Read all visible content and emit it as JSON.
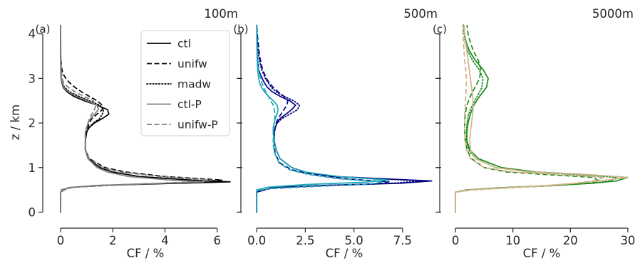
{
  "chart_data": [
    {
      "type": "line",
      "panel_label": "(a)",
      "title": "100m",
      "xlabel": "CF / %",
      "ylabel": "z / km",
      "xlim": [
        -0.3,
        6.8
      ],
      "ylim": [
        -0.2,
        4.25
      ],
      "xticks": [
        0,
        2,
        4,
        6
      ],
      "xtick_labels": [
        "0",
        "2",
        "4",
        "6"
      ],
      "yticks": [
        0,
        1,
        2,
        3,
        4
      ],
      "ytick_labels": [
        "0",
        "1",
        "2",
        "3",
        "4"
      ],
      "grid": false,
      "legend": {
        "placement": "top-right",
        "entries": [
          {
            "label": "ctl",
            "color": "#000000",
            "dash": "solid"
          },
          {
            "label": "unifw",
            "color": "#000000",
            "dash": "dashed"
          },
          {
            "label": "madw",
            "color": "#000000",
            "dash": "dotted"
          },
          {
            "label": "ctl-P",
            "color": "#808080",
            "dash": "solid"
          },
          {
            "label": "unifw-P",
            "color": "#808080",
            "dash": "dashed"
          }
        ]
      },
      "series": [
        {
          "name": "ctl",
          "color": "#000000",
          "dash": "solid",
          "z": [
            0,
            0.45,
            0.55,
            0.6,
            0.64,
            0.68,
            0.72,
            0.8,
            0.9,
            1.0,
            1.2,
            1.4,
            1.6,
            1.8,
            1.9,
            2.0,
            2.1,
            2.2,
            2.3,
            2.4,
            2.5,
            2.6,
            2.7,
            2.8,
            2.9,
            3.0,
            3.2,
            3.6,
            4.2
          ],
          "cf": [
            0,
            0,
            0.3,
            1.5,
            4.0,
            6.5,
            5.0,
            3.0,
            2.0,
            1.5,
            1.05,
            0.95,
            0.95,
            1.0,
            1.1,
            1.3,
            1.6,
            1.85,
            1.8,
            1.4,
            0.9,
            0.5,
            0.25,
            0.1,
            0.05,
            0.02,
            0.01,
            0,
            0
          ]
        },
        {
          "name": "unifw",
          "color": "#000000",
          "dash": "dashed",
          "z": [
            0,
            0.5,
            0.56,
            0.62,
            0.67,
            0.72,
            0.8,
            0.9,
            1.0,
            1.2,
            1.4,
            1.6,
            1.8,
            1.9,
            2.0,
            2.1,
            2.2,
            2.3,
            2.4,
            2.5,
            2.6,
            2.7,
            2.8,
            2.9,
            3.0,
            3.1,
            3.2,
            3.5,
            4.2
          ],
          "cf": [
            0,
            0,
            0.5,
            2.5,
            5.0,
            6.2,
            4.0,
            2.5,
            1.7,
            1.1,
            0.95,
            0.95,
            1.0,
            1.05,
            1.1,
            1.2,
            1.4,
            1.6,
            1.6,
            1.4,
            1.1,
            0.8,
            0.55,
            0.35,
            0.2,
            0.1,
            0.05,
            0,
            0
          ]
        },
        {
          "name": "madw",
          "color": "#000000",
          "dash": "dotted",
          "z": [
            0,
            0.45,
            0.55,
            0.6,
            0.64,
            0.68,
            0.72,
            0.8,
            0.9,
            1.0,
            1.2,
            1.4,
            1.6,
            1.8,
            1.9,
            2.0,
            2.1,
            2.2,
            2.3,
            2.4,
            2.5,
            2.6,
            2.7,
            2.8,
            2.9,
            3.0,
            3.2,
            3.6,
            4.2
          ],
          "cf": [
            0,
            0,
            0.3,
            1.4,
            3.8,
            6.4,
            5.0,
            3.0,
            2.0,
            1.5,
            1.1,
            0.95,
            0.95,
            1.0,
            1.1,
            1.25,
            1.5,
            1.6,
            1.65,
            1.5,
            1.1,
            0.7,
            0.35,
            0.15,
            0.07,
            0.03,
            0.01,
            0,
            0
          ]
        },
        {
          "name": "ctl-P",
          "color": "#808080",
          "dash": "solid",
          "z": [
            0,
            0.45,
            0.55,
            0.6,
            0.64,
            0.68,
            0.72,
            0.8,
            0.9,
            1.0,
            1.2,
            1.4,
            1.6,
            1.8,
            1.9,
            2.0,
            2.1,
            2.2,
            2.3,
            2.4,
            2.5,
            2.6,
            2.7,
            2.8,
            2.9,
            3.0,
            3.2,
            3.6,
            4.2
          ],
          "cf": [
            0,
            0,
            0.3,
            1.4,
            3.5,
            5.5,
            4.2,
            2.6,
            1.8,
            1.4,
            1.05,
            0.95,
            0.95,
            0.95,
            1.0,
            1.05,
            1.15,
            1.3,
            1.45,
            1.4,
            1.0,
            0.6,
            0.3,
            0.12,
            0.06,
            0.03,
            0.01,
            0,
            0
          ]
        },
        {
          "name": "unifw-P",
          "color": "#808080",
          "dash": "dashed",
          "z": [
            0,
            0.5,
            0.56,
            0.62,
            0.67,
            0.72,
            0.8,
            0.9,
            1.0,
            1.2,
            1.4,
            1.6,
            1.8,
            1.9,
            2.0,
            2.1,
            2.2,
            2.3,
            2.4,
            2.5,
            2.6,
            2.7,
            2.8,
            2.9,
            3.0,
            3.2,
            3.6,
            4.2
          ],
          "cf": [
            0,
            0,
            0.5,
            2.5,
            4.8,
            5.8,
            3.8,
            2.3,
            1.6,
            1.1,
            0.95,
            0.95,
            0.95,
            1.0,
            1.05,
            1.1,
            1.2,
            1.3,
            1.35,
            1.25,
            0.9,
            0.55,
            0.3,
            0.12,
            0.06,
            0.03,
            0.01,
            0,
            0
          ]
        }
      ]
    },
    {
      "type": "line",
      "panel_label": "(b)",
      "title": "500m",
      "xlabel": "CF / %",
      "ylabel": "",
      "xlim": [
        -0.3,
        9.3
      ],
      "ylim": [
        -0.2,
        4.25
      ],
      "xticks": [
        0,
        2.5,
        5,
        7.5
      ],
      "xtick_labels": [
        "0.0",
        "2.5",
        "5.0",
        "7.5"
      ],
      "yticks": [
        0,
        1,
        2,
        3,
        4
      ],
      "ytick_labels": [
        "",
        "",
        "",
        "",
        ""
      ],
      "grid": false,
      "series": [
        {
          "name": "ctl",
          "color": "#00007f",
          "dash": "solid",
          "z": [
            0,
            0.45,
            0.55,
            0.6,
            0.65,
            0.7,
            0.75,
            0.8,
            0.9,
            1.0,
            1.2,
            1.4,
            1.6,
            1.8,
            1.9,
            2.0,
            2.1,
            2.2,
            2.3,
            2.4,
            2.5,
            2.6,
            2.7,
            2.8,
            2.9,
            3.0,
            3.1,
            3.2,
            3.5,
            4.2
          ],
          "cf": [
            0,
            0,
            0.8,
            3.5,
            7.5,
            9.0,
            6.5,
            4.0,
            2.5,
            1.8,
            1.2,
            1.0,
            0.9,
            0.9,
            0.95,
            1.05,
            1.2,
            1.5,
            1.8,
            2.0,
            1.7,
            1.2,
            0.8,
            0.55,
            0.4,
            0.28,
            0.18,
            0.1,
            0.03,
            0
          ]
        },
        {
          "name": "unifw",
          "color": "#00007f",
          "dash": "dashed",
          "z": [
            0,
            0.48,
            0.53,
            0.58,
            0.63,
            0.68,
            0.75,
            0.85,
            0.95,
            1.1,
            1.3,
            1.5,
            1.7,
            1.9,
            2.0,
            2.1,
            2.2,
            2.3,
            2.4,
            2.5,
            2.6,
            2.7,
            2.8,
            2.9,
            3.0,
            3.2,
            3.5,
            4.0,
            4.2
          ],
          "cf": [
            0,
            0,
            0.8,
            3.0,
            6.0,
            6.8,
            4.5,
            2.8,
            1.8,
            1.2,
            0.95,
            0.9,
            0.9,
            0.95,
            1.0,
            1.1,
            1.25,
            1.4,
            1.55,
            1.6,
            1.4,
            1.1,
            0.85,
            0.65,
            0.5,
            0.3,
            0.15,
            0.03,
            0
          ]
        },
        {
          "name": "madw",
          "color": "#00007f",
          "dash": "dotted",
          "z": [
            0,
            0.45,
            0.55,
            0.6,
            0.65,
            0.7,
            0.75,
            0.8,
            0.9,
            1.0,
            1.2,
            1.4,
            1.6,
            1.8,
            1.9,
            2.0,
            2.1,
            2.2,
            2.3,
            2.4,
            2.5,
            2.6,
            2.7,
            2.8,
            2.9,
            3.0,
            3.2,
            3.5,
            3.8,
            4.2
          ],
          "cf": [
            0,
            0,
            0.8,
            3.4,
            7.0,
            8.5,
            6.2,
            3.9,
            2.5,
            1.8,
            1.2,
            1.0,
            0.9,
            0.9,
            0.95,
            1.05,
            1.3,
            1.7,
            2.1,
            2.2,
            1.9,
            1.4,
            1.0,
            0.75,
            0.6,
            0.45,
            0.25,
            0.1,
            0.04,
            0
          ]
        },
        {
          "name": "ctl-P",
          "color": "#17a9b5",
          "dash": "solid",
          "z": [
            0,
            0.5,
            0.56,
            0.62,
            0.67,
            0.72,
            0.8,
            0.9,
            1.0,
            1.2,
            1.4,
            1.6,
            1.8,
            1.9,
            2.0,
            2.1,
            2.2,
            2.3,
            2.4,
            2.5,
            2.6,
            2.7,
            2.8,
            2.9,
            3.0,
            3.2,
            3.5,
            4.0,
            4.2
          ],
          "cf": [
            0,
            0,
            0.6,
            2.5,
            5.5,
            6.8,
            4.2,
            2.5,
            1.8,
            1.2,
            1.0,
            0.9,
            0.85,
            0.85,
            0.9,
            0.95,
            1.05,
            1.1,
            1.05,
            0.85,
            0.6,
            0.4,
            0.25,
            0.15,
            0.1,
            0.05,
            0.02,
            0,
            0
          ]
        },
        {
          "name": "unifw-P",
          "color": "#17a9b5",
          "dash": "dashed",
          "z": [
            0,
            0.48,
            0.53,
            0.58,
            0.63,
            0.68,
            0.75,
            0.85,
            0.95,
            1.1,
            1.3,
            1.5,
            1.7,
            1.9,
            2.0,
            2.2,
            2.4,
            2.6,
            2.8,
            3.0,
            3.2,
            3.5,
            4.0,
            4.2
          ],
          "cf": [
            0,
            0,
            0.7,
            2.8,
            5.8,
            6.5,
            4.2,
            2.6,
            1.7,
            1.15,
            0.95,
            0.85,
            0.85,
            0.85,
            0.9,
            0.95,
            0.85,
            0.6,
            0.35,
            0.2,
            0.1,
            0.04,
            0.01,
            0
          ]
        }
      ]
    },
    {
      "type": "line",
      "panel_label": "(c)",
      "title": "5000m",
      "xlabel": "CF / %",
      "ylabel": "",
      "xlim": [
        -1,
        31
      ],
      "ylim": [
        -0.2,
        4.25
      ],
      "xticks": [
        0,
        10,
        20,
        30
      ],
      "xtick_labels": [
        "0",
        "10",
        "20",
        "30"
      ],
      "yticks": [
        0,
        1,
        2,
        3,
        4
      ],
      "ytick_labels": [
        "",
        "",
        "",
        "",
        ""
      ],
      "grid": false,
      "series": [
        {
          "name": "ctl",
          "color": "#1a8a1a",
          "dash": "solid",
          "z": [
            0,
            0.45,
            0.5,
            0.55,
            0.6,
            0.65,
            0.7,
            0.78,
            0.85,
            0.9,
            1.0,
            1.2,
            1.4,
            1.6,
            1.8,
            2.0,
            2.2,
            2.4,
            2.6,
            2.8,
            3.0,
            3.2,
            3.4,
            3.6,
            3.8,
            4.0,
            4.2
          ],
          "cf": [
            0,
            0,
            2.0,
            8.0,
            17.0,
            24.0,
            28.0,
            30.0,
            22.0,
            14.0,
            8.0,
            4.0,
            2.5,
            2.0,
            2.0,
            2.2,
            2.6,
            3.2,
            4.2,
            5.4,
            5.7,
            4.8,
            3.5,
            2.5,
            1.9,
            1.6,
            1.5
          ]
        },
        {
          "name": "unifw",
          "color": "#1a8a1a",
          "dash": "dashed",
          "z": [
            0,
            0.45,
            0.5,
            0.55,
            0.6,
            0.65,
            0.7,
            0.78,
            0.85,
            0.9,
            1.0,
            1.2,
            1.4,
            1.6,
            1.8,
            2.0,
            2.2,
            2.4,
            2.6,
            2.8,
            3.0,
            3.2,
            3.4,
            3.6,
            3.8,
            4.0,
            4.2
          ],
          "cf": [
            0,
            0,
            3.0,
            10.0,
            18.0,
            23.0,
            25.0,
            24.0,
            15.0,
            9.0,
            5.0,
            2.8,
            2.0,
            1.7,
            1.6,
            1.6,
            1.7,
            2.0,
            2.6,
            3.4,
            4.2,
            4.4,
            4.0,
            3.2,
            2.6,
            2.2,
            2.0
          ]
        },
        {
          "name": "madw",
          "color": "#1a8a1a",
          "dash": "dotted",
          "z": [
            0,
            0.45,
            0.5,
            0.55,
            0.6,
            0.65,
            0.7,
            0.78,
            0.85,
            0.9,
            1.0,
            1.2,
            1.4,
            1.6,
            1.8,
            2.0,
            2.2,
            2.4,
            2.6,
            2.8,
            3.0,
            3.2,
            3.4,
            3.6,
            3.8,
            4.0,
            4.2
          ],
          "cf": [
            0,
            0,
            2.2,
            8.5,
            17.0,
            24.0,
            27.0,
            28.0,
            20.0,
            13.0,
            7.0,
            3.5,
            2.3,
            1.9,
            1.9,
            2.0,
            2.3,
            2.9,
            3.8,
            4.6,
            4.8,
            4.1,
            3.0,
            2.2,
            1.7,
            1.5,
            1.4
          ]
        },
        {
          "name": "ctl-P",
          "color": "#d2b48c",
          "dash": "solid",
          "z": [
            0,
            0.45,
            0.5,
            0.55,
            0.6,
            0.65,
            0.7,
            0.78,
            0.85,
            0.9,
            1.0,
            1.2,
            1.4,
            1.6,
            1.8,
            2.0,
            2.2,
            2.4,
            2.6,
            2.8,
            3.0,
            3.2,
            3.4,
            3.6,
            3.8,
            4.0,
            4.2
          ],
          "cf": [
            0,
            0,
            2.5,
            9.0,
            16.0,
            21.0,
            25.0,
            30.0,
            22.0,
            13.0,
            7.0,
            3.5,
            2.6,
            2.5,
            2.6,
            2.8,
            3.0,
            3.1,
            3.0,
            2.8,
            2.6,
            2.4,
            2.2,
            2.0,
            1.8,
            1.6,
            1.5
          ]
        },
        {
          "name": "unifw-P",
          "color": "#d2b48c",
          "dash": "dashed",
          "z": [
            0,
            0.45,
            0.5,
            0.55,
            0.6,
            0.65,
            0.7,
            0.78,
            0.85,
            0.9,
            1.0,
            1.2,
            1.4,
            1.6,
            1.8,
            2.0,
            2.2,
            2.4,
            2.6,
            2.8,
            3.0,
            3.2,
            3.4,
            3.6,
            3.8,
            4.0,
            4.2
          ],
          "cf": [
            0,
            0,
            3.0,
            10.0,
            17.0,
            21.0,
            24.0,
            26.0,
            17.0,
            10.0,
            5.0,
            2.6,
            1.9,
            1.7,
            1.6,
            1.6,
            1.6,
            1.7,
            1.8,
            1.9,
            1.9,
            1.8,
            1.6,
            1.5,
            1.4,
            1.3,
            1.2
          ]
        }
      ]
    }
  ]
}
